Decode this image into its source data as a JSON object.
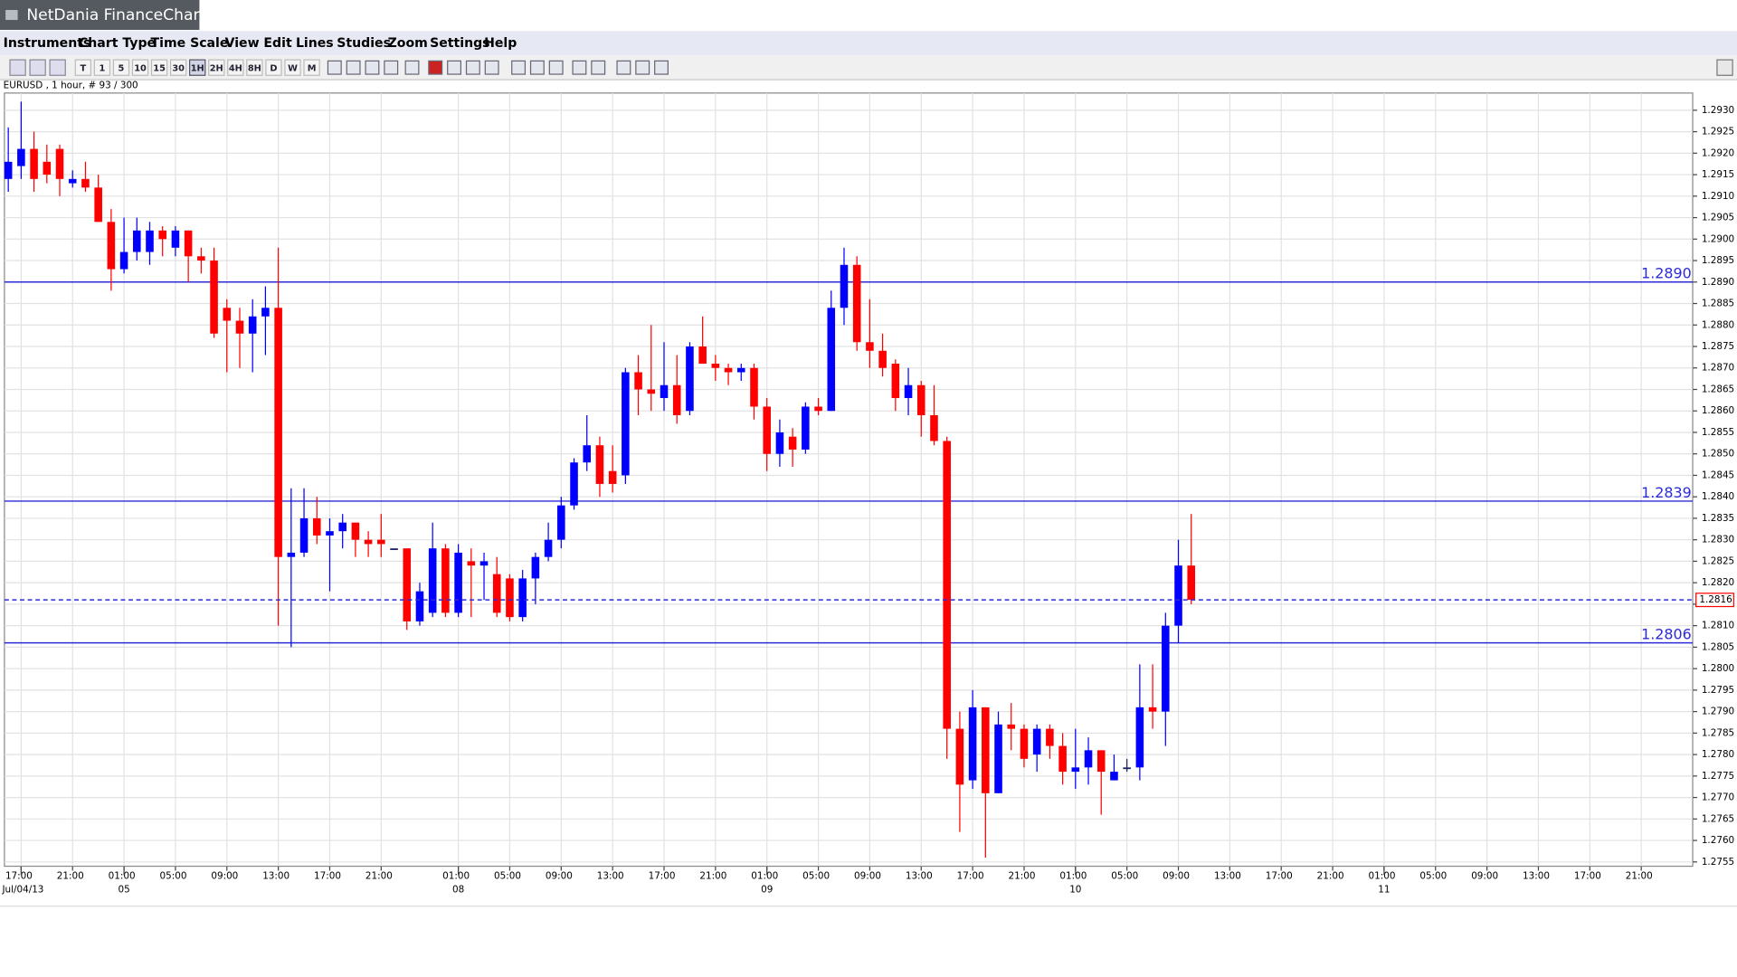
{
  "ui": {
    "app_title": "NetDania FinanceChart",
    "menu": [
      "Instruments",
      "Chart Type",
      "Time Scale",
      "View",
      "Edit",
      "Lines",
      "Studies",
      "Zoom",
      "Settings",
      "Help"
    ],
    "toolbar_labels": [
      "T",
      "1",
      "5",
      "10",
      "15",
      "30",
      "1H",
      "2H",
      "4H",
      "8H",
      "D",
      "W",
      "M"
    ]
  },
  "chart_data": {
    "type": "candlestick",
    "symbol_label": "EURUSD , 1 hour, # 93 / 300",
    "up_color": "#0000ff",
    "down_color": "#ff0000",
    "line_color": "#2b2bd9",
    "grid": true,
    "xlim": [
      -0.3,
      131
    ],
    "ylim": [
      1.2754,
      1.2934
    ],
    "yticks": [
      1.2755,
      {
        "value": 1.276,
        "label": "1.2760"
      },
      1.2765,
      {
        "value": 1.277,
        "label": "1.2770"
      },
      1.2775,
      {
        "value": 1.278,
        "label": "1.2780"
      },
      1.2785,
      {
        "value": 1.279,
        "label": "1.2790"
      },
      1.2795,
      {
        "value": 1.28,
        "label": "1.2800"
      },
      1.2805,
      {
        "value": 1.281,
        "label": "1.2810"
      },
      1.2815,
      {
        "value": 1.282,
        "label": "1.2820"
      },
      1.2825,
      {
        "value": 1.283,
        "label": "1.2830"
      },
      1.2835,
      {
        "value": 1.284,
        "label": "1.2840"
      },
      1.2845,
      {
        "value": 1.285,
        "label": "1.2850"
      },
      1.2855,
      {
        "value": 1.286,
        "label": "1.2860"
      },
      1.2865,
      {
        "value": 1.287,
        "label": "1.2870"
      },
      1.2875,
      {
        "value": 1.288,
        "label": "1.2880"
      },
      1.2885,
      {
        "value": 1.289,
        "label": "1.2890"
      },
      1.2895,
      {
        "value": 1.29,
        "label": "1.2900"
      },
      1.2905,
      {
        "value": 1.291,
        "label": "1.2910"
      },
      1.2915,
      {
        "value": 1.292,
        "label": "1.2920"
      },
      1.2925,
      {
        "value": 1.293,
        "label": "1.2930"
      }
    ],
    "xticks": [
      {
        "value": 1,
        "label": "17:00"
      },
      {
        "value": 5,
        "label": "21:00"
      },
      {
        "value": 9,
        "label": "01:00"
      },
      {
        "value": 13,
        "label": "05:00"
      },
      {
        "value": 17,
        "label": "09:00"
      },
      {
        "value": 21,
        "label": "13:00"
      },
      {
        "value": 25,
        "label": "17:00"
      },
      {
        "value": 29,
        "label": "21:00"
      },
      {
        "value": 35,
        "label": "01:00"
      },
      {
        "value": 39,
        "label": "05:00"
      },
      {
        "value": 43,
        "label": "09:00"
      },
      {
        "value": 47,
        "label": "13:00"
      },
      {
        "value": 51,
        "label": "17:00"
      },
      {
        "value": 55,
        "label": "21:00"
      },
      {
        "value": 59,
        "label": "01:00"
      },
      {
        "value": 63,
        "label": "05:00"
      },
      {
        "value": 67,
        "label": "09:00"
      },
      {
        "value": 71,
        "label": "13:00"
      },
      {
        "value": 75,
        "label": "17:00"
      },
      {
        "value": 79,
        "label": "21:00"
      },
      {
        "value": 83,
        "label": "01:00"
      },
      {
        "value": 87,
        "label": "05:00"
      },
      {
        "value": 91,
        "label": "09:00"
      },
      {
        "value": 95,
        "label": "13:00"
      },
      {
        "value": 99,
        "label": "17:00"
      },
      {
        "value": 103,
        "label": "21:00"
      },
      {
        "value": 107,
        "label": "01:00"
      },
      {
        "value": 111,
        "label": "05:00"
      },
      {
        "value": 115,
        "label": "09:00"
      },
      {
        "value": 119,
        "label": "13:00"
      },
      {
        "value": 123,
        "label": "17:00"
      },
      {
        "value": 127,
        "label": "21:00"
      }
    ],
    "date_labels": [
      {
        "value": 1,
        "label": "Jul/04/13"
      },
      {
        "value": 9,
        "label": "05"
      },
      {
        "value": 35,
        "label": "08"
      },
      {
        "value": 59,
        "label": "09"
      },
      {
        "value": 83,
        "label": "10"
      },
      {
        "value": 107,
        "label": "11"
      }
    ],
    "hlines": [
      {
        "value": 1.289,
        "label": "1.2890"
      },
      1.2839,
      1.2806
    ],
    "last_price": 1.2816,
    "series": {
      "open": [
        1.2914,
        1.2917,
        1.2921,
        1.2918,
        1.2921,
        1.2913,
        1.2914,
        1.2912,
        1.2904,
        1.2893,
        1.2897,
        1.2897,
        1.2902,
        1.2898,
        1.2902,
        1.2896,
        1.2895,
        1.2884,
        1.2881,
        1.2878,
        1.2882,
        1.2884,
        1.2826,
        1.2827,
        1.2835,
        1.2831,
        1.2832,
        1.2834,
        1.283,
        1.283,
        1.2828,
        1.2828,
        1.2811,
        1.2813,
        1.2828,
        1.2813,
        1.2825,
        1.2824,
        1.2822,
        1.2821,
        1.2812,
        1.2821,
        1.2826,
        1.283,
        1.2838,
        1.2848,
        1.2852,
        1.2846,
        1.2845,
        1.2869,
        1.2865,
        1.2863,
        1.2866,
        1.286,
        1.2875,
        1.2871,
        1.287,
        1.2869,
        1.287,
        1.2861,
        1.285,
        1.2854,
        1.2851,
        1.2861,
        1.286,
        1.2884,
        1.2894,
        1.2876,
        1.2874,
        1.2871,
        1.2863,
        1.2866,
        1.2859,
        1.2853,
        1.2786,
        1.2774,
        1.2791,
        1.2771,
        1.2787,
        1.2786,
        1.278,
        1.2786,
        1.2782,
        1.2776,
        1.2777,
        1.2781,
        1.2774,
        1.2777,
        1.2777,
        1.2791,
        1.279,
        1.281,
        1.2824
      ],
      "high": [
        1.2926,
        1.2932,
        1.2925,
        1.2922,
        1.2922,
        1.2916,
        1.2918,
        1.2915,
        1.2907,
        1.2905,
        1.2905,
        1.2904,
        1.2903,
        1.2903,
        1.2902,
        1.2898,
        1.2898,
        1.2886,
        1.2884,
        1.2886,
        1.2889,
        1.2898,
        1.2842,
        1.2842,
        1.284,
        1.2835,
        1.2836,
        1.2834,
        1.2832,
        1.2836,
        1.2828,
        1.2828,
        1.282,
        1.2834,
        1.2829,
        1.2829,
        1.2828,
        1.2827,
        1.2826,
        1.2822,
        1.2823,
        1.2827,
        1.2834,
        1.284,
        1.2849,
        1.2859,
        1.2854,
        1.2852,
        1.287,
        1.2873,
        1.288,
        1.2876,
        1.2873,
        1.2876,
        1.2882,
        1.2873,
        1.2871,
        1.2871,
        1.2871,
        1.2863,
        1.2858,
        1.2856,
        1.2862,
        1.2863,
        1.2888,
        1.2898,
        1.2896,
        1.2886,
        1.2878,
        1.2872,
        1.287,
        1.2867,
        1.2866,
        1.2854,
        1.279,
        1.2795,
        1.2791,
        1.279,
        1.2792,
        1.2787,
        1.2787,
        1.2787,
        1.2785,
        1.2786,
        1.2784,
        1.2781,
        1.278,
        1.2779,
        1.2801,
        1.2801,
        1.2813,
        1.283,
        1.2836
      ],
      "low": [
        1.2911,
        1.2914,
        1.2911,
        1.2913,
        1.291,
        1.2912,
        1.2911,
        1.2904,
        1.2888,
        1.2892,
        1.2895,
        1.2894,
        1.2896,
        1.2896,
        1.289,
        1.2892,
        1.2877,
        1.2869,
        1.287,
        1.2869,
        1.2873,
        1.281,
        1.2805,
        1.2826,
        1.2829,
        1.2818,
        1.2828,
        1.2826,
        1.2826,
        1.2826,
        1.2828,
        1.2809,
        1.281,
        1.2812,
        1.2812,
        1.2812,
        1.2812,
        1.2816,
        1.2812,
        1.2811,
        1.2811,
        1.2815,
        1.2825,
        1.2828,
        1.2837,
        1.2846,
        1.284,
        1.2841,
        1.2843,
        1.2859,
        1.286,
        1.286,
        1.2857,
        1.2859,
        1.2871,
        1.2867,
        1.2866,
        1.2867,
        1.2858,
        1.2846,
        1.2847,
        1.2847,
        1.285,
        1.2859,
        1.286,
        1.288,
        1.2874,
        1.287,
        1.2868,
        1.286,
        1.2859,
        1.2854,
        1.2852,
        1.2779,
        1.2762,
        1.2772,
        1.2756,
        1.2771,
        1.2781,
        1.2777,
        1.2776,
        1.2779,
        1.2773,
        1.2772,
        1.2773,
        1.2766,
        1.2774,
        1.2776,
        1.2774,
        1.2786,
        1.2782,
        1.2806,
        1.2815
      ],
      "close": [
        1.2918,
        1.2921,
        1.2914,
        1.2915,
        1.2914,
        1.2914,
        1.2912,
        1.2904,
        1.2893,
        1.2897,
        1.2902,
        1.2902,
        1.29,
        1.2902,
        1.2896,
        1.2895,
        1.2878,
        1.2881,
        1.2878,
        1.2882,
        1.2884,
        1.2826,
        1.2827,
        1.2835,
        1.2831,
        1.2832,
        1.2834,
        1.283,
        1.2829,
        1.2829,
        1.2828,
        1.2811,
        1.2818,
        1.2828,
        1.2813,
        1.2827,
        1.2824,
        1.2825,
        1.2813,
        1.2812,
        1.2821,
        1.2826,
        1.283,
        1.2838,
        1.2848,
        1.2852,
        1.2843,
        1.2843,
        1.2869,
        1.2865,
        1.2864,
        1.2866,
        1.2859,
        1.2875,
        1.2871,
        1.287,
        1.2869,
        1.287,
        1.2861,
        1.285,
        1.2855,
        1.2851,
        1.2861,
        1.286,
        1.2884,
        1.2894,
        1.2876,
        1.2874,
        1.287,
        1.2863,
        1.2866,
        1.2859,
        1.2853,
        1.2786,
        1.2773,
        1.2791,
        1.2771,
        1.2787,
        1.2786,
        1.2779,
        1.2786,
        1.2782,
        1.2776,
        1.2777,
        1.2781,
        1.2776,
        1.2776,
        1.2777,
        1.2791,
        1.279,
        1.281,
        1.2824,
        1.2816
      ]
    }
  }
}
